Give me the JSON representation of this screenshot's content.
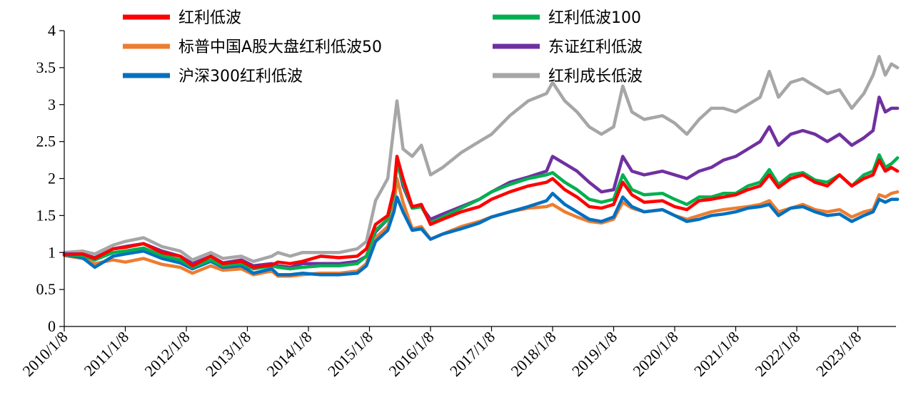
{
  "chart_data": {
    "type": "line",
    "title": "",
    "xlabel": "",
    "ylabel": "",
    "ylim": [
      0,
      4
    ],
    "y_ticks": [
      "0",
      "0.5",
      "1",
      "1.5",
      "2",
      "2.5",
      "3",
      "3.5",
      "4"
    ],
    "x_ticks": [
      "2010/1/8",
      "2011/1/8",
      "2012/1/8",
      "2013/1/8",
      "2014/1/8",
      "2015/1/8",
      "2016/1/8",
      "2017/1/8",
      "2018/1/8",
      "2019/1/8",
      "2020/1/8",
      "2021/1/8",
      "2022/1/8",
      "2023/1/8"
    ],
    "x_range": [
      2010.0,
      2023.65
    ],
    "legend_position": "top-left",
    "series": [
      {
        "name": "红利低波",
        "color": "#ff0000",
        "x": [
          2010.0,
          2010.3,
          2010.5,
          2010.8,
          2011.0,
          2011.3,
          2011.6,
          2011.9,
          2012.1,
          2012.4,
          2012.6,
          2012.9,
          2013.1,
          2013.4,
          2013.5,
          2013.7,
          2013.9,
          2014.2,
          2014.5,
          2014.8,
          2014.95,
          2015.1,
          2015.3,
          2015.4,
          2015.45,
          2015.55,
          2015.7,
          2015.85,
          2016.0,
          2016.2,
          2016.5,
          2016.8,
          2017.0,
          2017.3,
          2017.6,
          2017.9,
          2018.0,
          2018.2,
          2018.4,
          2018.6,
          2018.8,
          2019.0,
          2019.15,
          2019.3,
          2019.5,
          2019.8,
          2020.0,
          2020.2,
          2020.4,
          2020.6,
          2020.8,
          2021.0,
          2021.2,
          2021.4,
          2021.55,
          2021.7,
          2021.9,
          2022.1,
          2022.3,
          2022.5,
          2022.7,
          2022.9,
          2023.1,
          2023.25,
          2023.35,
          2023.45,
          2023.55,
          2023.65
        ],
        "y": [
          0.97,
          0.98,
          0.92,
          1.05,
          1.07,
          1.12,
          1.0,
          0.95,
          0.82,
          0.95,
          0.85,
          0.88,
          0.8,
          0.83,
          0.87,
          0.85,
          0.88,
          0.95,
          0.93,
          0.95,
          1.05,
          1.38,
          1.5,
          1.85,
          2.3,
          2.0,
          1.62,
          1.65,
          1.38,
          1.45,
          1.55,
          1.62,
          1.72,
          1.82,
          1.9,
          1.95,
          2.0,
          1.85,
          1.75,
          1.62,
          1.6,
          1.65,
          1.95,
          1.78,
          1.68,
          1.7,
          1.62,
          1.58,
          1.7,
          1.72,
          1.75,
          1.78,
          1.85,
          1.9,
          2.05,
          1.88,
          2.0,
          2.05,
          1.95,
          1.9,
          2.05,
          1.9,
          2.0,
          2.05,
          2.25,
          2.1,
          2.15,
          2.1
        ]
      },
      {
        "name": "红利低波100",
        "color": "#00b050",
        "x": [
          2010.0,
          2010.3,
          2010.5,
          2010.8,
          2011.0,
          2011.3,
          2011.6,
          2011.9,
          2012.1,
          2012.4,
          2012.6,
          2012.9,
          2013.1,
          2013.4,
          2013.5,
          2013.7,
          2013.9,
          2014.2,
          2014.5,
          2014.8,
          2014.95,
          2015.1,
          2015.3,
          2015.4,
          2015.45,
          2015.55,
          2015.7,
          2015.85,
          2016.0,
          2016.2,
          2016.5,
          2016.8,
          2017.0,
          2017.3,
          2017.6,
          2017.9,
          2018.0,
          2018.2,
          2018.4,
          2018.6,
          2018.8,
          2019.0,
          2019.15,
          2019.3,
          2019.5,
          2019.8,
          2020.0,
          2020.2,
          2020.4,
          2020.6,
          2020.8,
          2021.0,
          2021.2,
          2021.4,
          2021.55,
          2021.7,
          2021.9,
          2022.1,
          2022.3,
          2022.5,
          2022.7,
          2022.9,
          2023.1,
          2023.25,
          2023.35,
          2023.45,
          2023.55,
          2023.65
        ],
        "y": [
          0.97,
          0.96,
          0.9,
          1.0,
          1.02,
          1.06,
          0.96,
          0.9,
          0.8,
          0.9,
          0.82,
          0.85,
          0.78,
          0.82,
          0.8,
          0.78,
          0.8,
          0.82,
          0.82,
          0.85,
          0.95,
          1.3,
          1.45,
          1.8,
          2.2,
          1.95,
          1.6,
          1.62,
          1.4,
          1.48,
          1.6,
          1.72,
          1.82,
          1.92,
          2.0,
          2.05,
          2.08,
          1.95,
          1.85,
          1.72,
          1.68,
          1.72,
          2.05,
          1.85,
          1.78,
          1.8,
          1.72,
          1.65,
          1.75,
          1.75,
          1.8,
          1.8,
          1.9,
          1.95,
          2.12,
          1.92,
          2.05,
          2.08,
          1.98,
          1.95,
          2.05,
          1.9,
          2.05,
          2.1,
          2.32,
          2.15,
          2.2,
          2.28
        ]
      },
      {
        "name": "标普中国A股大盘红利低波50",
        "color": "#ed7d31",
        "x": [
          2010.0,
          2010.3,
          2010.5,
          2010.8,
          2011.0,
          2011.3,
          2011.6,
          2011.9,
          2012.1,
          2012.4,
          2012.6,
          2012.9,
          2013.1,
          2013.4,
          2013.5,
          2013.7,
          2013.9,
          2014.2,
          2014.5,
          2014.8,
          2014.95,
          2015.1,
          2015.3,
          2015.4,
          2015.45,
          2015.55,
          2015.7,
          2015.85,
          2016.0,
          2016.2,
          2016.5,
          2016.8,
          2017.0,
          2017.3,
          2017.6,
          2017.9,
          2018.0,
          2018.2,
          2018.4,
          2018.6,
          2018.8,
          2019.0,
          2019.15,
          2019.3,
          2019.5,
          2019.8,
          2020.0,
          2020.2,
          2020.4,
          2020.6,
          2020.8,
          2021.0,
          2021.2,
          2021.4,
          2021.55,
          2021.7,
          2021.9,
          2022.1,
          2022.3,
          2022.5,
          2022.7,
          2022.9,
          2023.1,
          2023.25,
          2023.35,
          2023.45,
          2023.55,
          2023.65
        ],
        "y": [
          0.96,
          0.92,
          0.85,
          0.9,
          0.87,
          0.92,
          0.84,
          0.8,
          0.72,
          0.82,
          0.76,
          0.78,
          0.7,
          0.75,
          0.68,
          0.68,
          0.7,
          0.72,
          0.72,
          0.75,
          0.85,
          1.2,
          1.35,
          1.62,
          2.0,
          1.68,
          1.32,
          1.35,
          1.18,
          1.25,
          1.35,
          1.42,
          1.48,
          1.55,
          1.6,
          1.62,
          1.65,
          1.55,
          1.48,
          1.42,
          1.4,
          1.45,
          1.68,
          1.6,
          1.55,
          1.58,
          1.5,
          1.45,
          1.5,
          1.55,
          1.58,
          1.6,
          1.62,
          1.65,
          1.7,
          1.55,
          1.6,
          1.65,
          1.58,
          1.55,
          1.58,
          1.48,
          1.55,
          1.58,
          1.78,
          1.75,
          1.8,
          1.82
        ]
      },
      {
        "name": "东证红利低波",
        "color": "#7030a0",
        "x": [
          2010.0,
          2010.3,
          2010.5,
          2010.8,
          2011.0,
          2011.3,
          2011.6,
          2011.9,
          2012.1,
          2012.4,
          2012.6,
          2012.9,
          2013.1,
          2013.4,
          2013.5,
          2013.7,
          2013.9,
          2014.2,
          2014.5,
          2014.8,
          2014.95,
          2015.1,
          2015.3,
          2015.4,
          2015.45,
          2015.55,
          2015.7,
          2015.85,
          2016.0,
          2016.2,
          2016.5,
          2016.8,
          2017.0,
          2017.3,
          2017.6,
          2017.9,
          2018.0,
          2018.2,
          2018.4,
          2018.6,
          2018.8,
          2019.0,
          2019.15,
          2019.3,
          2019.5,
          2019.8,
          2020.0,
          2020.2,
          2020.4,
          2020.6,
          2020.8,
          2021.0,
          2021.2,
          2021.4,
          2021.55,
          2021.7,
          2021.9,
          2022.1,
          2022.3,
          2022.5,
          2022.7,
          2022.9,
          2023.1,
          2023.25,
          2023.35,
          2023.45,
          2023.55,
          2023.65
        ],
        "y": [
          0.98,
          0.98,
          0.93,
          1.05,
          1.08,
          1.12,
          1.02,
          0.95,
          0.85,
          0.95,
          0.86,
          0.9,
          0.82,
          0.85,
          0.82,
          0.8,
          0.85,
          0.85,
          0.85,
          0.88,
          0.95,
          1.28,
          1.45,
          1.8,
          2.25,
          1.9,
          1.6,
          1.62,
          1.45,
          1.52,
          1.62,
          1.72,
          1.82,
          1.95,
          2.02,
          2.1,
          2.3,
          2.2,
          2.1,
          1.95,
          1.82,
          1.85,
          2.3,
          2.1,
          2.05,
          2.1,
          2.05,
          2.0,
          2.1,
          2.15,
          2.25,
          2.3,
          2.4,
          2.5,
          2.7,
          2.45,
          2.6,
          2.65,
          2.6,
          2.5,
          2.6,
          2.45,
          2.55,
          2.65,
          3.1,
          2.9,
          2.95,
          2.95
        ]
      },
      {
        "name": "沪深300红利低波",
        "color": "#0070c0",
        "x": [
          2010.0,
          2010.3,
          2010.5,
          2010.8,
          2011.0,
          2011.3,
          2011.6,
          2011.9,
          2012.1,
          2012.4,
          2012.6,
          2012.9,
          2013.1,
          2013.4,
          2013.5,
          2013.7,
          2013.9,
          2014.2,
          2014.5,
          2014.8,
          2014.95,
          2015.1,
          2015.3,
          2015.4,
          2015.45,
          2015.55,
          2015.7,
          2015.85,
          2016.0,
          2016.2,
          2016.5,
          2016.8,
          2017.0,
          2017.3,
          2017.6,
          2017.9,
          2018.0,
          2018.2,
          2018.4,
          2018.6,
          2018.8,
          2019.0,
          2019.15,
          2019.3,
          2019.5,
          2019.8,
          2020.0,
          2020.2,
          2020.4,
          2020.6,
          2020.8,
          2021.0,
          2021.2,
          2021.4,
          2021.55,
          2021.7,
          2021.9,
          2022.1,
          2022.3,
          2022.5,
          2022.7,
          2022.9,
          2023.1,
          2023.25,
          2023.35,
          2023.45,
          2023.55,
          2023.65
        ],
        "y": [
          0.97,
          0.93,
          0.8,
          0.95,
          0.98,
          1.02,
          0.92,
          0.86,
          0.78,
          0.88,
          0.8,
          0.82,
          0.72,
          0.78,
          0.7,
          0.7,
          0.72,
          0.7,
          0.7,
          0.72,
          0.82,
          1.15,
          1.3,
          1.55,
          1.75,
          1.55,
          1.3,
          1.32,
          1.18,
          1.25,
          1.32,
          1.4,
          1.48,
          1.55,
          1.62,
          1.7,
          1.8,
          1.65,
          1.55,
          1.45,
          1.42,
          1.48,
          1.75,
          1.62,
          1.55,
          1.58,
          1.5,
          1.42,
          1.45,
          1.5,
          1.52,
          1.55,
          1.6,
          1.62,
          1.65,
          1.5,
          1.6,
          1.62,
          1.55,
          1.5,
          1.52,
          1.42,
          1.5,
          1.55,
          1.72,
          1.68,
          1.72,
          1.72
        ]
      },
      {
        "name": "红利成长低波",
        "color": "#a6a6a6",
        "x": [
          2010.0,
          2010.3,
          2010.5,
          2010.8,
          2011.0,
          2011.3,
          2011.6,
          2011.9,
          2012.1,
          2012.4,
          2012.6,
          2012.9,
          2013.1,
          2013.4,
          2013.5,
          2013.7,
          2013.9,
          2014.2,
          2014.5,
          2014.8,
          2014.95,
          2015.1,
          2015.3,
          2015.4,
          2015.45,
          2015.55,
          2015.7,
          2015.85,
          2016.0,
          2016.2,
          2016.5,
          2016.8,
          2017.0,
          2017.3,
          2017.6,
          2017.9,
          2018.0,
          2018.2,
          2018.4,
          2018.6,
          2018.8,
          2019.0,
          2019.15,
          2019.3,
          2019.5,
          2019.8,
          2020.0,
          2020.2,
          2020.4,
          2020.6,
          2020.8,
          2021.0,
          2021.2,
          2021.4,
          2021.55,
          2021.7,
          2021.9,
          2022.1,
          2022.3,
          2022.5,
          2022.7,
          2022.9,
          2023.1,
          2023.25,
          2023.35,
          2023.45,
          2023.55,
          2023.65
        ],
        "y": [
          1.0,
          1.02,
          0.98,
          1.1,
          1.15,
          1.2,
          1.08,
          1.02,
          0.9,
          1.0,
          0.92,
          0.95,
          0.88,
          0.95,
          1.0,
          0.95,
          1.0,
          1.0,
          1.0,
          1.05,
          1.15,
          1.7,
          2.0,
          2.7,
          3.05,
          2.4,
          2.3,
          2.45,
          2.05,
          2.15,
          2.35,
          2.5,
          2.6,
          2.85,
          3.05,
          3.15,
          3.3,
          3.05,
          2.9,
          2.7,
          2.6,
          2.7,
          3.25,
          2.9,
          2.8,
          2.85,
          2.75,
          2.6,
          2.8,
          2.95,
          2.95,
          2.9,
          3.0,
          3.1,
          3.45,
          3.1,
          3.3,
          3.35,
          3.25,
          3.15,
          3.2,
          2.95,
          3.15,
          3.4,
          3.65,
          3.4,
          3.55,
          3.5
        ]
      }
    ]
  }
}
